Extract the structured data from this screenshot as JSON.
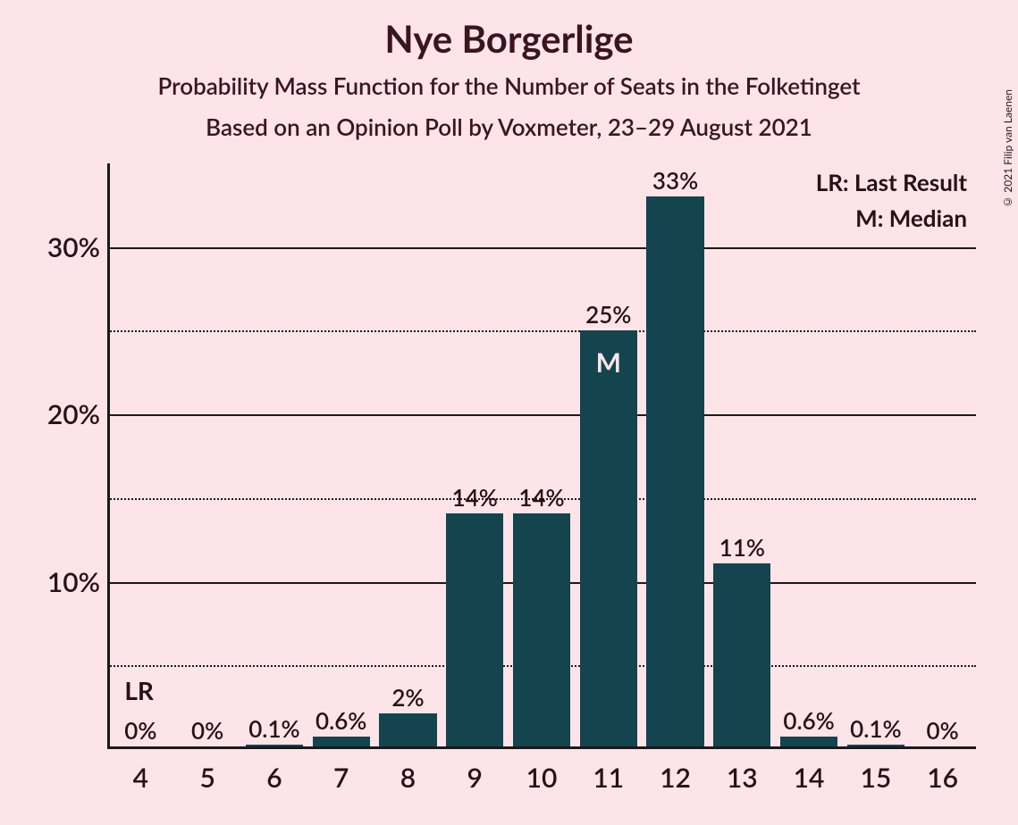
{
  "title": "Nye Borgerlige",
  "subtitle1": "Probability Mass Function for the Number of Seats in the Folketinget",
  "subtitle2": "Based on an Opinion Poll by Voxmeter, 23–29 August 2021",
  "copyright": "© 2021 Filip van Laenen",
  "legend": {
    "lr": "LR: Last Result",
    "m": "M: Median"
  },
  "chart": {
    "type": "bar",
    "background_color": "#fce4e8",
    "bar_color": "#14444d",
    "text_color": "#2a1018",
    "grid_color": "#1a1a1a",
    "ylim": [
      0,
      35
    ],
    "y_major_ticks": [
      10,
      20,
      30
    ],
    "y_minor_ticks": [
      5,
      15,
      25
    ],
    "x_categories": [
      4,
      5,
      6,
      7,
      8,
      9,
      10,
      11,
      12,
      13,
      14,
      15,
      16
    ],
    "values": [
      0,
      0,
      0.1,
      0.6,
      2,
      14,
      14,
      25,
      33,
      11,
      0.6,
      0.1,
      0
    ],
    "value_labels": [
      "0%",
      "0%",
      "0.1%",
      "0.6%",
      "2%",
      "14%",
      "14%",
      "25%",
      "33%",
      "11%",
      "0.6%",
      "0.1%",
      "0%"
    ],
    "lr_index": 0,
    "lr_text": "LR",
    "median_index": 7,
    "median_text": "M",
    "bar_width_ratio": 0.86
  }
}
